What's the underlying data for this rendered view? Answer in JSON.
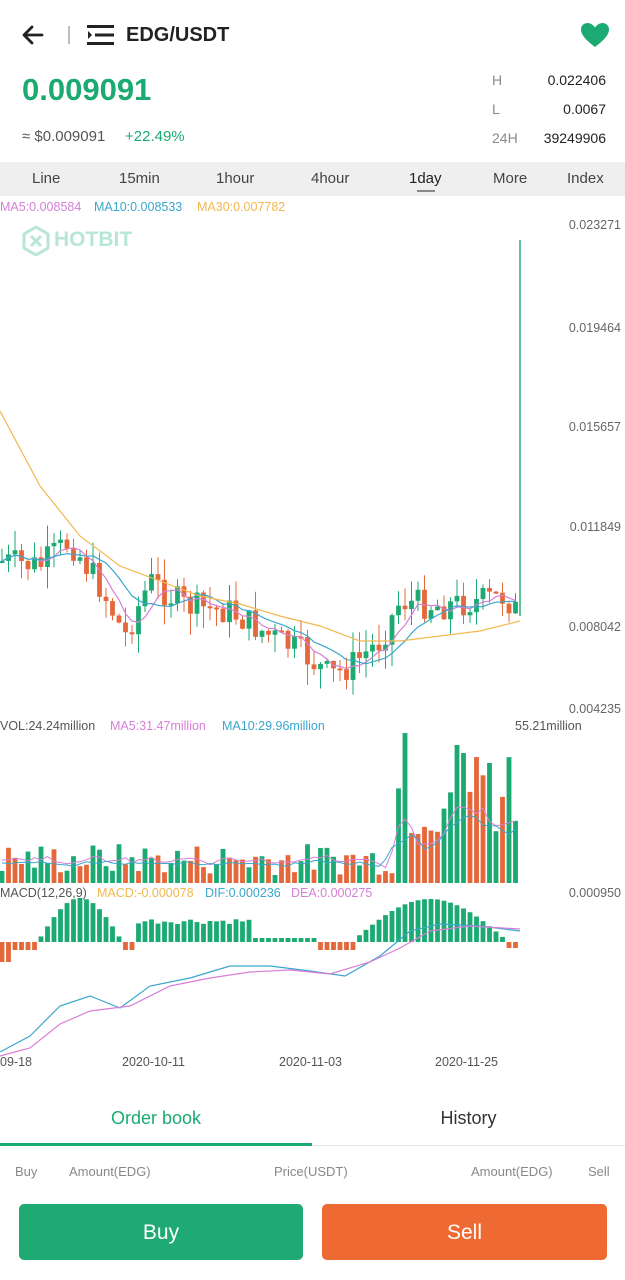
{
  "header": {
    "pair": "EDG/USDT"
  },
  "ticker": {
    "price": "0.009091",
    "approx_usd": "≈ $0.009091",
    "change": "+22.49%",
    "stats": [
      {
        "key": "H",
        "value": "0.022406"
      },
      {
        "key": "L",
        "value": "0.0067"
      },
      {
        "key": "24H",
        "value": "39249906"
      }
    ]
  },
  "tabs": [
    "Line",
    "15min",
    "1hour",
    "4hour",
    "1day",
    "More",
    "Index"
  ],
  "selected_tab": "1day",
  "watermark": "HOTBIT",
  "price_chart": {
    "ma5": "MA5:0.008584",
    "ma10": "MA10:0.008533",
    "ma30": "MA30:0.007782",
    "axis": [
      "0.023271",
      "0.019464",
      "0.015657",
      "0.011849",
      "0.008042",
      "0.004235"
    ]
  },
  "volume_chart": {
    "vol": "VOL:24.24million",
    "ma5": "MA5:31.47million",
    "ma10": "MA10:29.96million",
    "max": "55.21million"
  },
  "macd_chart": {
    "label": "MACD(12,26,9)",
    "macd": "MACD:-0.000078",
    "dif": "DIF:0.000236",
    "dea": "DEA:0.000275",
    "max": "0.000950"
  },
  "dates": [
    "09-18",
    "2020-10-11",
    "2020-11-03",
    "2020-11-25"
  ],
  "bottom_tabs": {
    "order_book": "Order book",
    "history": "History"
  },
  "order_book_columns": [
    "Buy",
    "Amount(EDG)",
    "Price(USDT)",
    "Amount(EDG)",
    "Sell"
  ],
  "buttons": {
    "buy": "Buy",
    "sell": "Sell"
  },
  "colors": {
    "up": "#1aaa72",
    "down": "#e4683a",
    "ma5": "#d67fd6",
    "ma10": "#3aa6cc",
    "ma30": "#f2b84f",
    "watermark": "#b8e6d6"
  }
}
